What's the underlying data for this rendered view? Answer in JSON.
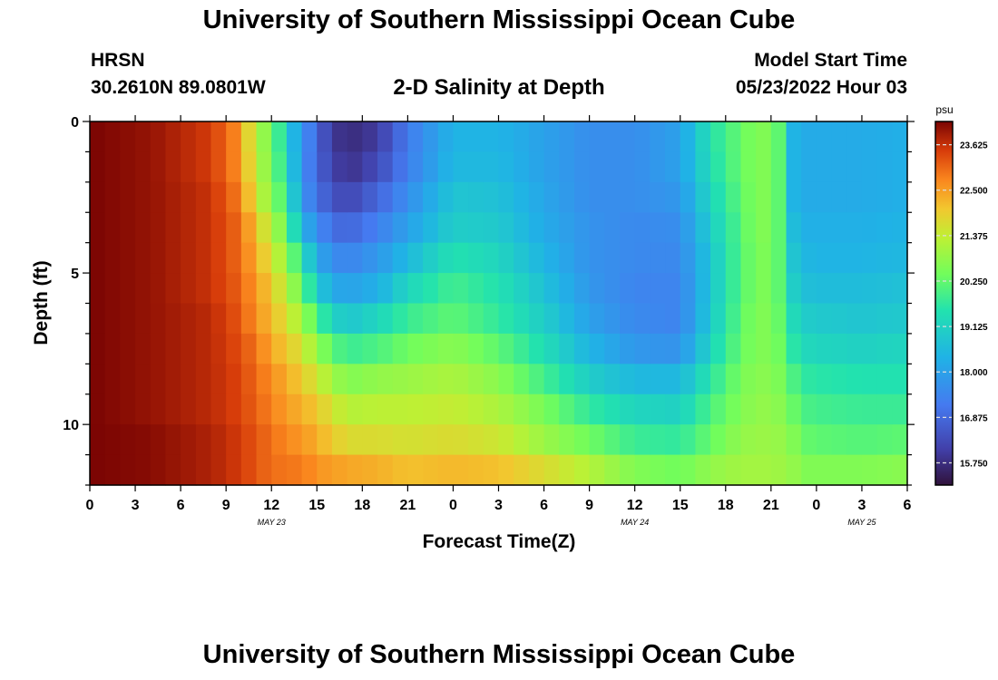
{
  "header": {
    "title": "University of Southern Mississippi Ocean Cube",
    "station": "HRSN",
    "coords": "30.2610N  89.0801W",
    "subtitle": "2-D Salinity at Depth",
    "start_label": "Model Start Time",
    "start_time": "05/23/2022 Hour 03"
  },
  "footer": {
    "title": "University of Southern Mississippi Ocean Cube"
  },
  "chart_data": {
    "type": "heatmap",
    "variable": "Salinity",
    "unit": "psu",
    "xlabel": "Forecast Time(Z)",
    "ylabel": "Depth (ft)",
    "x_range_hours": [
      0,
      54
    ],
    "x_tick_labels": [
      "0",
      "3",
      "6",
      "9",
      "12",
      "15",
      "18",
      "21",
      "0",
      "3",
      "6",
      "9",
      "12",
      "15",
      "18",
      "21",
      "0",
      "3",
      "6"
    ],
    "x_date_labels": [
      {
        "hour": 12,
        "label": "MAY 23"
      },
      {
        "hour": 36,
        "label": "MAY 24"
      },
      {
        "hour": 51,
        "label": "MAY 25"
      }
    ],
    "y_range_ft": [
      0,
      12
    ],
    "y_inverted": true,
    "y_tick_labels": [
      "0",
      "5",
      "10"
    ],
    "y_tick_values": [
      0,
      5,
      10
    ],
    "colorbar": {
      "min": 15.2,
      "max": 24.2,
      "tick_values": [
        23.625,
        22.5,
        21.375,
        20.25,
        19.125,
        18.0,
        16.875,
        15.75
      ],
      "tick_labels": [
        "23.625",
        "22.500",
        "21.375",
        "20.250",
        "19.125",
        "18.000",
        "16.875",
        "15.750"
      ]
    },
    "depth_levels_ft": [
      0.5,
      1.5,
      2.5,
      3.5,
      4.5,
      5.5,
      6.5,
      7.5,
      8.5,
      9.5,
      10.5,
      11.5
    ],
    "profile_hours": [
      0,
      4,
      8,
      10,
      11,
      12,
      13,
      14,
      15,
      16,
      17,
      19,
      21,
      24,
      27,
      30,
      33,
      36,
      39,
      41,
      43,
      44,
      45,
      46,
      46.5,
      47,
      48,
      51,
      54
    ],
    "profiles": [
      [
        24.2,
        24.2,
        24.2,
        24.2,
        24.2,
        24.2,
        24.2,
        24.2,
        24.2,
        24.2,
        24.2,
        24.2
      ],
      [
        24.0,
        24.0,
        24.0,
        24.0,
        24.0,
        24.0,
        24.0,
        24.0,
        24.0,
        24.0,
        24.1,
        24.1
      ],
      [
        23.5,
        23.5,
        23.6,
        23.6,
        23.6,
        23.6,
        23.7,
        23.7,
        23.7,
        23.7,
        23.8,
        23.8
      ],
      [
        22.6,
        22.6,
        22.8,
        23.0,
        23.0,
        23.1,
        23.2,
        23.3,
        23.4,
        23.4,
        23.5,
        23.5
      ],
      [
        21.0,
        21.2,
        21.5,
        22.0,
        22.3,
        22.5,
        22.6,
        22.9,
        23.0,
        23.1,
        23.2,
        23.2
      ],
      [
        20.6,
        20.6,
        20.7,
        21.2,
        21.6,
        22.0,
        22.2,
        22.4,
        22.7,
        22.8,
        23.0,
        23.0
      ],
      [
        19.0,
        19.3,
        19.8,
        20.3,
        20.8,
        21.2,
        21.6,
        22.0,
        22.3,
        22.5,
        22.7,
        22.9
      ],
      [
        17.8,
        17.7,
        17.8,
        18.4,
        19.5,
        20.3,
        21.0,
        21.6,
        22.0,
        22.3,
        22.6,
        22.9
      ],
      [
        16.8,
        16.8,
        17.0,
        17.6,
        18.2,
        19.0,
        20.0,
        20.8,
        21.5,
        22.0,
        22.3,
        22.6
      ],
      [
        16.0,
        16.2,
        16.5,
        17.0,
        17.6,
        18.2,
        19.2,
        20.2,
        21.0,
        21.6,
        22.0,
        22.5
      ],
      [
        15.7,
        15.8,
        16.2,
        16.8,
        17.4,
        18.0,
        18.8,
        19.8,
        20.6,
        21.2,
        21.7,
        22.4
      ],
      [
        16.0,
        16.3,
        16.8,
        17.3,
        17.8,
        18.3,
        19.2,
        20.0,
        20.8,
        21.3,
        21.7,
        22.3
      ],
      [
        17.2,
        17.3,
        17.6,
        18.0,
        18.5,
        19.2,
        19.8,
        20.4,
        20.9,
        21.3,
        21.6,
        22.1
      ],
      [
        18.4,
        18.5,
        18.8,
        19.0,
        19.5,
        19.9,
        20.2,
        20.7,
        21.1,
        21.4,
        21.7,
        22.2
      ],
      [
        18.4,
        18.5,
        18.7,
        18.9,
        19.2,
        19.5,
        19.7,
        20.2,
        20.7,
        21.1,
        21.5,
        22.1
      ],
      [
        18.0,
        18.0,
        18.1,
        18.2,
        18.4,
        18.7,
        19.0,
        19.4,
        19.9,
        20.5,
        20.9,
        21.7
      ],
      [
        17.6,
        17.6,
        17.6,
        17.7,
        17.7,
        17.8,
        18.0,
        18.4,
        19.0,
        19.7,
        20.4,
        21.2
      ],
      [
        17.6,
        17.6,
        17.6,
        17.5,
        17.5,
        17.4,
        17.5,
        17.8,
        18.5,
        19.2,
        19.8,
        20.6
      ],
      [
        18.0,
        18.0,
        17.8,
        17.6,
        17.5,
        17.4,
        17.4,
        17.7,
        18.5,
        19.1,
        19.7,
        20.4
      ],
      [
        19.5,
        19.4,
        19.2,
        19.0,
        18.8,
        18.8,
        18.9,
        19.2,
        19.6,
        20.0,
        20.3,
        20.8
      ],
      [
        20.3,
        20.3,
        20.2,
        20.1,
        20.1,
        20.1,
        20.2,
        20.3,
        20.5,
        20.6,
        20.8,
        21.0
      ],
      [
        20.6,
        20.6,
        20.6,
        20.6,
        20.5,
        20.5,
        20.6,
        20.6,
        20.7,
        20.8,
        20.9,
        21.0
      ],
      [
        20.6,
        20.6,
        20.6,
        20.6,
        20.6,
        20.6,
        20.6,
        20.6,
        20.7,
        20.8,
        20.9,
        21.0
      ],
      [
        19.8,
        19.8,
        19.8,
        19.8,
        19.8,
        19.8,
        20.0,
        20.2,
        20.4,
        20.6,
        20.8,
        20.9
      ],
      [
        18.4,
        18.4,
        18.4,
        18.6,
        18.8,
        19.0,
        19.3,
        19.6,
        20.0,
        20.3,
        20.6,
        20.8
      ],
      [
        18.2,
        18.2,
        18.2,
        18.3,
        18.5,
        18.7,
        19.0,
        19.3,
        19.7,
        20.0,
        20.3,
        20.6
      ],
      [
        18.2,
        18.2,
        18.2,
        18.3,
        18.4,
        18.6,
        18.9,
        19.2,
        19.6,
        19.9,
        20.2,
        20.6
      ],
      [
        18.2,
        18.2,
        18.2,
        18.3,
        18.4,
        18.6,
        18.8,
        19.1,
        19.5,
        19.8,
        20.1,
        20.6
      ],
      [
        18.3,
        18.3,
        18.3,
        18.4,
        18.5,
        18.7,
        18.9,
        19.2,
        19.5,
        19.8,
        20.2,
        20.7
      ]
    ]
  }
}
